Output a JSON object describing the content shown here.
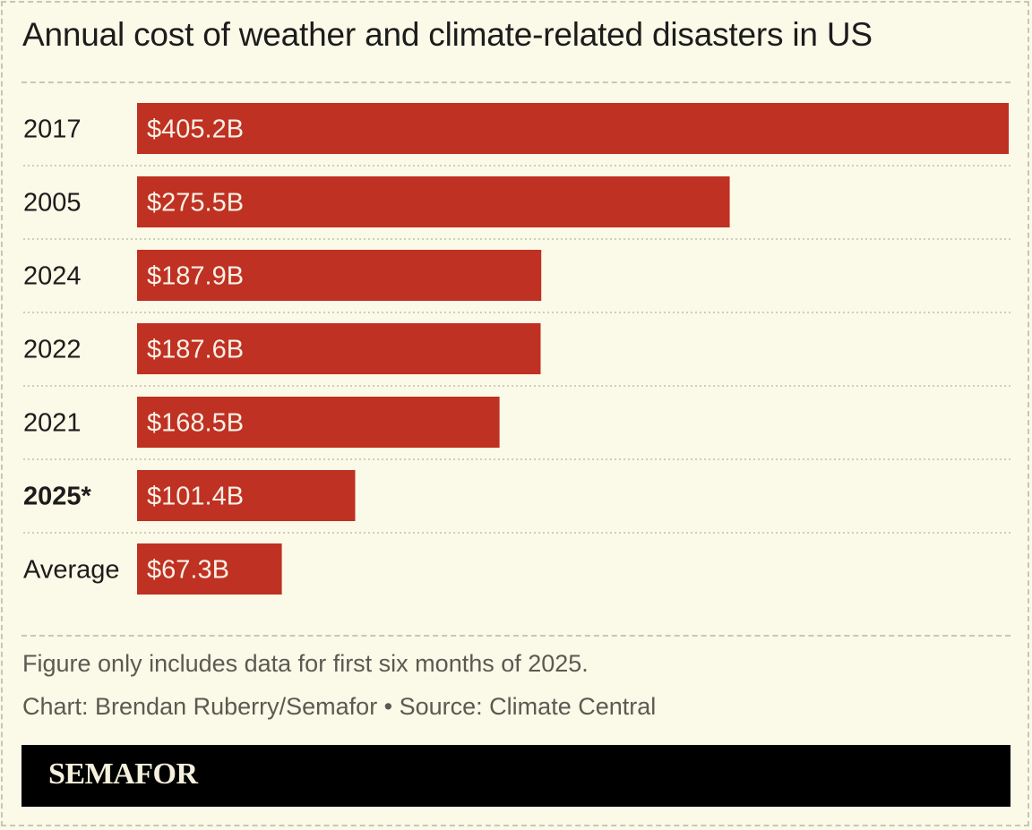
{
  "chart_data": {
    "type": "bar",
    "orientation": "horizontal",
    "title": "Annual cost of weather and climate-related disasters in US",
    "categories": [
      "2017",
      "2005",
      "2024",
      "2022",
      "2021",
      "2025*",
      "Average"
    ],
    "values": [
      405.2,
      275.5,
      187.9,
      187.6,
      168.5,
      101.4,
      67.3
    ],
    "value_labels": [
      "$405.2B",
      "$275.5B",
      "$187.9B",
      "$187.6B",
      "$168.5B",
      "$101.4B",
      "$67.3B"
    ],
    "highlight_category": "2025*",
    "unit": "billion USD",
    "xlabel": "",
    "ylabel": "",
    "xlim": [
      0,
      405.2
    ],
    "grid": false,
    "legend": "none",
    "bar_color": "#bf3122"
  },
  "footer": {
    "note": "Figure only includes data for first six months of 2025.",
    "credit": "Chart: Brendan Ruberry/Semafor • Source: Climate Central",
    "brand": "SEMAFOR"
  },
  "colors": {
    "background": "#fbf9e7",
    "bar": "#bf3122",
    "bar_label": "#f7f0e6",
    "text": "#1c1c1c",
    "muted_text": "#5a5a52",
    "brand_bar": "#000000",
    "brand_text": "#f5f0dc"
  }
}
